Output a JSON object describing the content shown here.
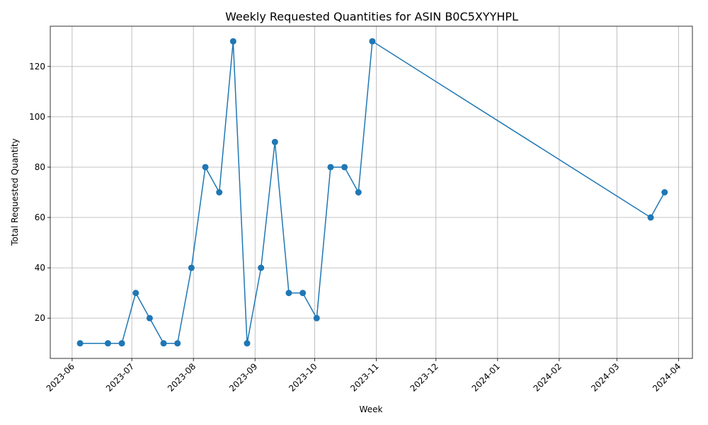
{
  "chart_data": {
    "type": "line",
    "title": "Weekly Requested Quantities for ASIN B0C5XYYHPL",
    "xlabel": "Week",
    "ylabel": "Total Requested Quantity",
    "grid": true,
    "color": "#1f77b4",
    "xlim": [
      "2023-05-21",
      "2024-04-08"
    ],
    "ylim": [
      4,
      136
    ],
    "x_ticks": [
      "2023-06",
      "2023-07",
      "2023-08",
      "2023-09",
      "2023-10",
      "2023-11",
      "2023-12",
      "2024-01",
      "2024-02",
      "2024-03",
      "2024-04"
    ],
    "y_ticks": [
      20,
      40,
      60,
      80,
      100,
      120
    ],
    "series": [
      {
        "points": [
          {
            "x": "2023-06-05",
            "y": 10
          },
          {
            "x": "2023-06-19",
            "y": 10
          },
          {
            "x": "2023-06-26",
            "y": 10
          },
          {
            "x": "2023-07-03",
            "y": 30
          },
          {
            "x": "2023-07-10",
            "y": 20
          },
          {
            "x": "2023-07-17",
            "y": 10
          },
          {
            "x": "2023-07-24",
            "y": 10
          },
          {
            "x": "2023-07-31",
            "y": 40
          },
          {
            "x": "2023-08-07",
            "y": 80
          },
          {
            "x": "2023-08-14",
            "y": 70
          },
          {
            "x": "2023-08-21",
            "y": 130
          },
          {
            "x": "2023-08-28",
            "y": 10
          },
          {
            "x": "2023-09-04",
            "y": 40
          },
          {
            "x": "2023-09-11",
            "y": 90
          },
          {
            "x": "2023-09-18",
            "y": 30
          },
          {
            "x": "2023-09-25",
            "y": 30
          },
          {
            "x": "2023-10-02",
            "y": 20
          },
          {
            "x": "2023-10-09",
            "y": 80
          },
          {
            "x": "2023-10-16",
            "y": 80
          },
          {
            "x": "2023-10-23",
            "y": 70
          },
          {
            "x": "2023-10-30",
            "y": 130
          },
          {
            "x": "2024-03-18",
            "y": 60
          },
          {
            "x": "2024-03-25",
            "y": 70
          }
        ]
      }
    ]
  }
}
